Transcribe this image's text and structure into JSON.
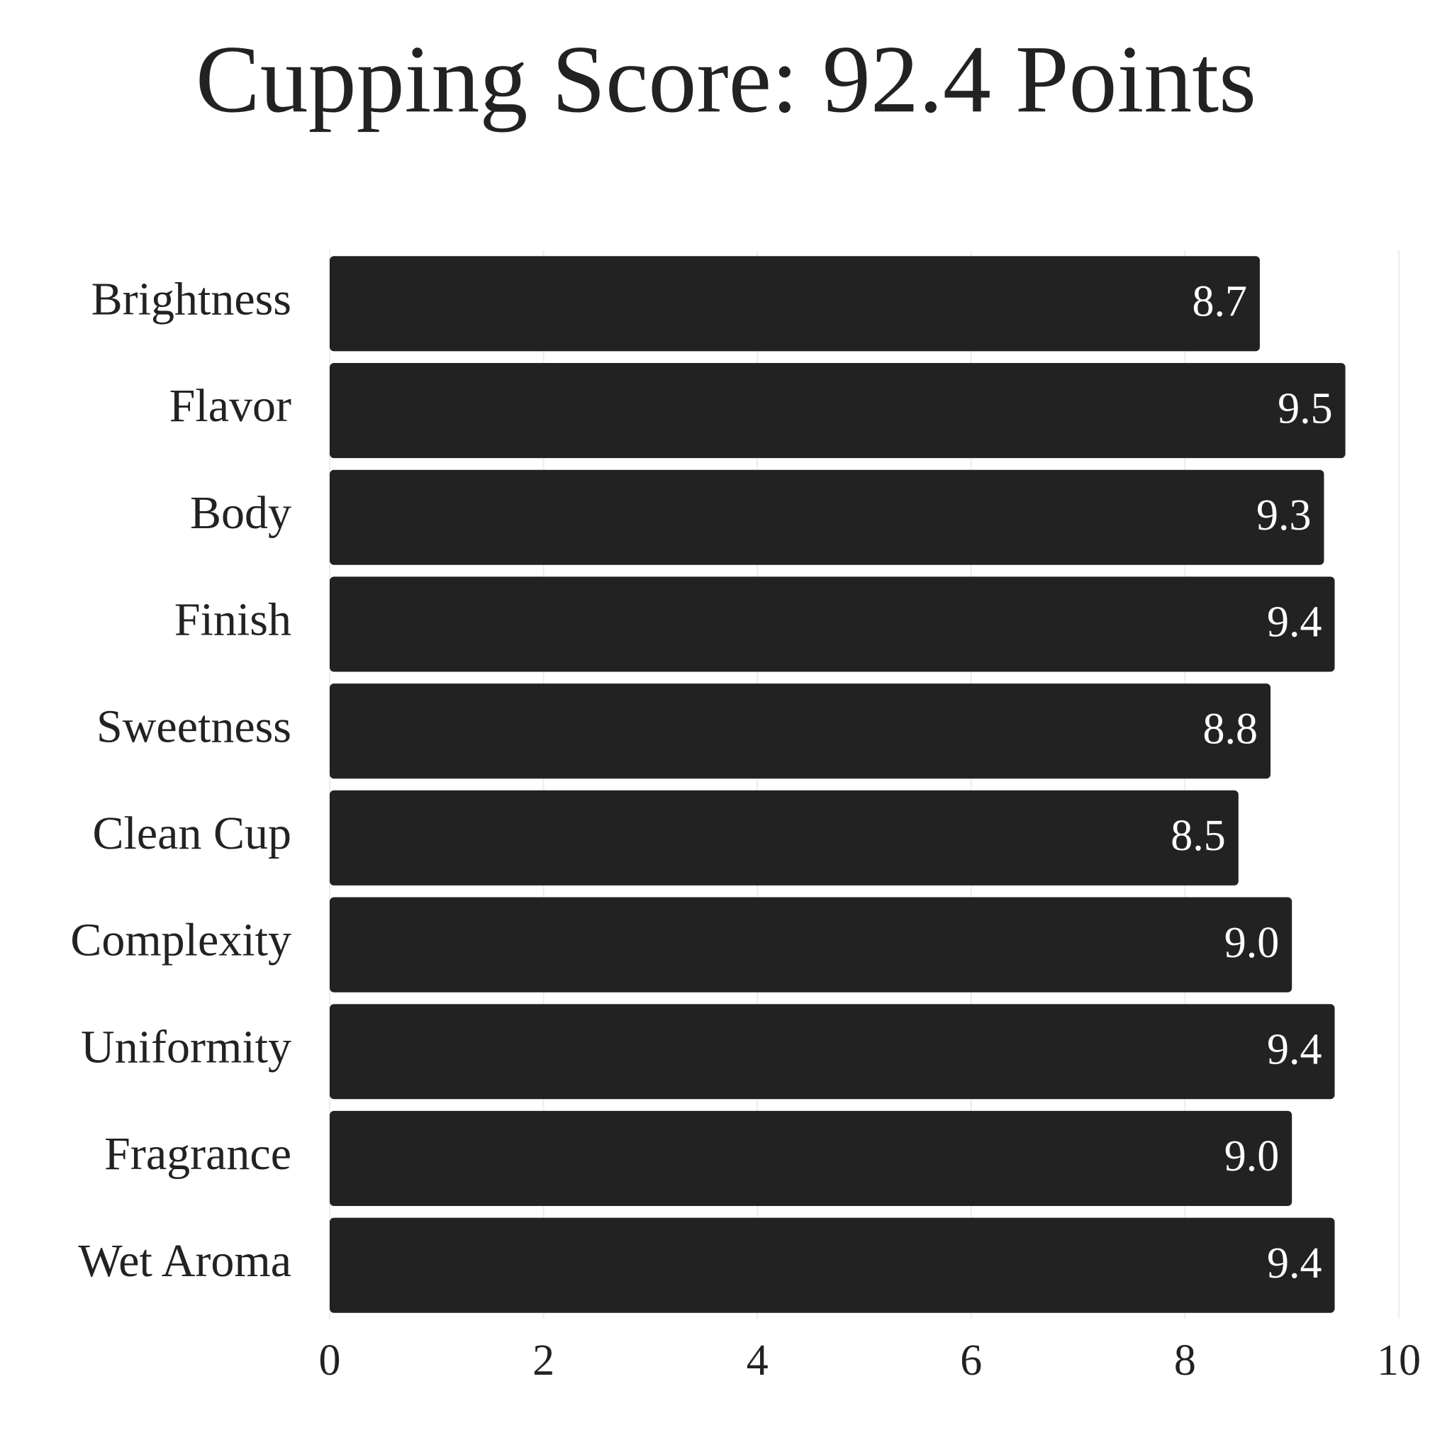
{
  "chart_data": {
    "type": "barh",
    "title": "Cupping Score: 92.4 Points",
    "categories": [
      "Brightness",
      "Flavor",
      "Body",
      "Finish",
      "Sweetness",
      "Clean Cup",
      "Complexity",
      "Uniformity",
      "Fragrance",
      "Wet Aroma"
    ],
    "values": [
      8.7,
      9.5,
      9.3,
      9.4,
      8.8,
      8.5,
      9.0,
      9.4,
      9.0,
      9.4
    ],
    "value_labels": [
      "8.7",
      "9.5",
      "9.3",
      "9.4",
      "8.8",
      "8.5",
      "9.0",
      "9.4",
      "9.0",
      "9.4"
    ],
    "color": "#222222",
    "xlim": [
      0,
      10
    ],
    "xticks": [
      0,
      2,
      4,
      6,
      8,
      10
    ],
    "grid": true
  }
}
